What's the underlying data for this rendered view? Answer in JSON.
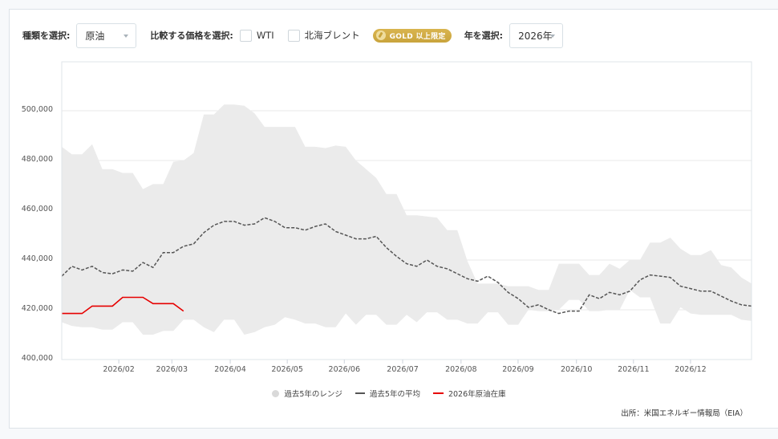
{
  "controls": {
    "type_label": "種類を選択:",
    "type_value": "原油",
    "compare_label": "比較する価格を選択:",
    "compare_options": [
      {
        "label": "WTI",
        "checked": false
      },
      {
        "label": "北海ブレント",
        "checked": false
      }
    ],
    "gold_badge": "GOLD 以上限定",
    "year_label": "年を選択:",
    "year_value": "2026年"
  },
  "legend": {
    "range": "過去5年のレンジ",
    "average": "過去5年の平均",
    "current": "2026年原油在庫"
  },
  "source": "出所：米国エネルギー情報局（EIA）",
  "colors": {
    "range_fill": "#ebebeb",
    "average_line": "#555555",
    "current_line": "#e60000",
    "grid": "#eaeaea",
    "gold": "#d1ad45"
  },
  "chart_data": {
    "type": "line",
    "title": "",
    "xlabel": "",
    "ylabel": "",
    "ylim": [
      400000,
      520000
    ],
    "yticks": [
      400000,
      420000,
      440000,
      460000,
      480000,
      500000
    ],
    "ytick_labels": [
      "400,000",
      "420,000",
      "440,000",
      "460,000",
      "480,000",
      "500,000"
    ],
    "xtick_labels": [
      "2026/02",
      "2026/03",
      "2026/04",
      "2026/05",
      "2026/06",
      "2026/07",
      "2026/08",
      "2026/09",
      "2026/10",
      "2026/11",
      "2026/12"
    ],
    "xtick_weeks": [
      4.3,
      8.3,
      12.7,
      17.0,
      21.3,
      25.7,
      30.1,
      34.4,
      38.8,
      43.1,
      47.4
    ],
    "weeks": 52,
    "grid": true,
    "legend_position": "bottom",
    "series": [
      {
        "name": "過去5年のレンジ (上限)",
        "values": [
          485500,
          482500,
          482500,
          486500,
          476500,
          476500,
          475000,
          475000,
          468500,
          470500,
          470500,
          479500,
          480000,
          483000,
          498500,
          498500,
          502500,
          502500,
          502000,
          499000,
          493500,
          493500,
          493500,
          493500,
          485500,
          485500,
          485000,
          486000,
          485500,
          480000,
          476500,
          473000,
          466500,
          466500,
          458000,
          458000,
          457500,
          457000,
          452000,
          452000,
          439500,
          430500,
          430500,
          430500,
          429500,
          429500,
          429500,
          428000,
          428000,
          438500,
          438500,
          438500,
          434000,
          434000,
          438500,
          436500,
          440000,
          440000,
          447000,
          447000,
          449000,
          444500,
          442000,
          442000,
          444000,
          438000,
          437000,
          433000,
          430500
        ]
      },
      {
        "name": "過去5年のレンジ (下限)",
        "values": [
          415000,
          413500,
          413000,
          413000,
          412000,
          412000,
          415000,
          415000,
          410000,
          410000,
          411500,
          411500,
          416000,
          416000,
          413000,
          411000,
          416000,
          416000,
          410000,
          411000,
          413000,
          414000,
          417000,
          416000,
          414500,
          414500,
          413000,
          413000,
          418500,
          414000,
          418000,
          418000,
          414000,
          414000,
          418000,
          415000,
          419000,
          419000,
          416000,
          416000,
          414500,
          414500,
          419000,
          419000,
          414000,
          414000,
          420000,
          419500,
          419500,
          420000,
          424000,
          424000,
          419500,
          419500,
          420000,
          420000,
          428000,
          425000,
          425000,
          414500,
          414500,
          421000,
          418500,
          418000,
          418000,
          418000,
          418000,
          416000,
          415500
        ]
      },
      {
        "name": "過去5年の平均",
        "values": [
          433500,
          437500,
          436000,
          437500,
          435000,
          434500,
          436000,
          435500,
          439000,
          437000,
          443000,
          443000,
          445500,
          446500,
          451000,
          454000,
          455500,
          455500,
          454000,
          454500,
          457000,
          455500,
          453000,
          453000,
          452000,
          453500,
          454500,
          451500,
          450000,
          448500,
          448500,
          449500,
          445000,
          441500,
          438500,
          437500,
          440000,
          437500,
          436500,
          434500,
          432500,
          431500,
          433500,
          431000,
          427000,
          424500,
          421000,
          422000,
          420000,
          418500,
          419500,
          419500,
          426000,
          424500,
          427000,
          426000,
          427500,
          432000,
          434000,
          433500,
          433000,
          429500,
          428500,
          427500,
          427500,
          425500,
          423500,
          422000,
          421500
        ]
      },
      {
        "name": "2026年原油在庫",
        "values": [
          418500,
          418500,
          418500,
          421500,
          421500,
          421500,
          425000,
          425000,
          425000,
          422500,
          422500,
          422500,
          419500
        ]
      }
    ]
  }
}
